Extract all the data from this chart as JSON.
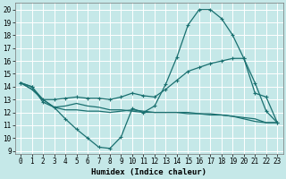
{
  "xlabel": "Humidex (Indice chaleur)",
  "bg_color": "#c5e8e8",
  "grid_color": "#ffffff",
  "line_color": "#1a7070",
  "xlim": [
    -0.5,
    23.5
  ],
  "ylim": [
    8.8,
    20.5
  ],
  "yticks": [
    9,
    10,
    11,
    12,
    13,
    14,
    15,
    16,
    17,
    18,
    19,
    20
  ],
  "xticks": [
    0,
    1,
    2,
    3,
    4,
    5,
    6,
    7,
    8,
    9,
    10,
    11,
    12,
    13,
    14,
    15,
    16,
    17,
    18,
    19,
    20,
    21,
    22,
    23
  ],
  "line1_x": [
    0,
    1,
    2,
    3,
    4,
    5,
    6,
    7,
    8,
    9,
    10,
    11,
    12,
    13,
    14,
    15,
    16,
    17,
    18,
    19,
    20,
    21,
    22,
    23
  ],
  "line1_y": [
    14.3,
    14.0,
    12.8,
    12.4,
    11.5,
    10.7,
    10.0,
    9.3,
    9.2,
    10.1,
    12.3,
    12.0,
    12.5,
    14.2,
    16.3,
    18.8,
    20.0,
    20.0,
    19.3,
    18.0,
    16.2,
    14.3,
    12.1,
    11.2
  ],
  "line2_x": [
    0,
    1,
    2,
    3,
    4,
    5,
    6,
    7,
    8,
    9,
    10,
    11,
    12,
    13,
    14,
    15,
    16,
    17,
    18,
    19,
    20,
    21,
    22,
    23
  ],
  "line2_y": [
    14.3,
    14.0,
    13.0,
    13.0,
    13.1,
    13.2,
    13.1,
    13.1,
    13.0,
    13.2,
    13.5,
    13.3,
    13.2,
    13.8,
    14.5,
    15.2,
    15.5,
    15.8,
    16.0,
    16.2,
    16.2,
    13.5,
    13.2,
    11.2
  ],
  "line3_x": [
    0,
    1,
    2,
    3,
    4,
    5,
    6,
    7,
    8,
    9,
    10,
    11,
    12,
    13,
    14,
    15,
    16,
    17,
    18,
    19,
    20,
    21,
    22,
    23
  ],
  "line3_y": [
    14.3,
    13.8,
    13.0,
    12.4,
    12.2,
    12.2,
    12.1,
    12.1,
    12.0,
    12.1,
    12.2,
    12.1,
    12.0,
    12.0,
    12.0,
    12.0,
    11.9,
    11.9,
    11.8,
    11.7,
    11.6,
    11.5,
    11.2,
    11.2
  ],
  "line4_x": [
    0,
    1,
    2,
    3,
    4,
    5,
    6,
    7,
    8,
    9,
    10,
    11,
    12,
    13,
    14,
    15,
    16,
    17,
    18,
    19,
    20,
    21,
    22,
    23
  ],
  "line4_y": [
    14.3,
    13.8,
    13.0,
    12.4,
    12.5,
    12.7,
    12.5,
    12.4,
    12.2,
    12.2,
    12.1,
    12.0,
    12.0,
    12.0,
    12.0,
    11.9,
    11.9,
    11.8,
    11.8,
    11.7,
    11.5,
    11.3,
    11.2,
    11.2
  ]
}
